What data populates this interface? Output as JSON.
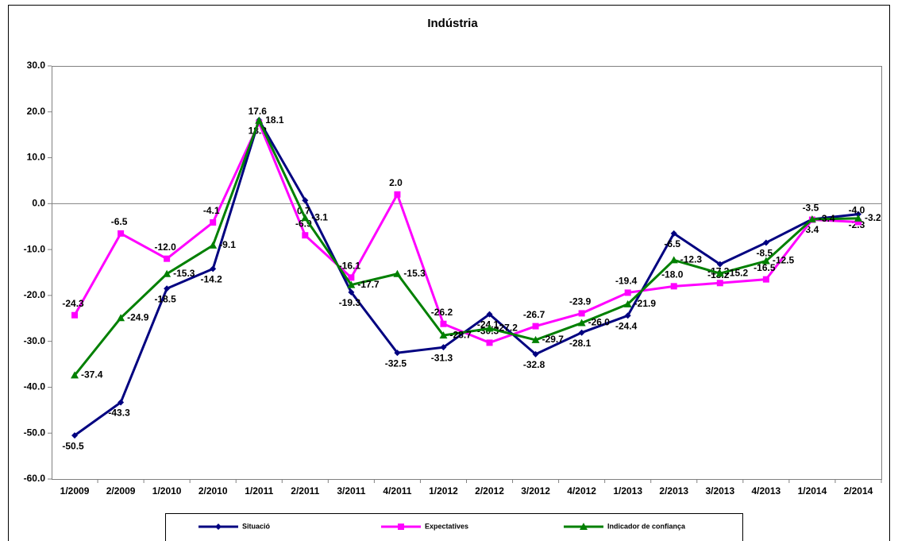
{
  "chart_data": {
    "type": "line",
    "title": "Indústria",
    "categories": [
      "1/2009",
      "2/2009",
      "1/2010",
      "2/2010",
      "1/2011",
      "2/2011",
      "3/2011",
      "4/2011",
      "1/2012",
      "2/2012",
      "3/2012",
      "4/2012",
      "1/2013",
      "2/2013",
      "3/2013",
      "4/2013",
      "1/2014",
      "2/2014"
    ],
    "series": [
      {
        "name": "Situació",
        "color": "#000080",
        "marker": "diamond",
        "values": [
          -50.5,
          -43.3,
          -18.5,
          -14.2,
          18.2,
          0.7,
          -19.3,
          -32.5,
          -31.3,
          -24.1,
          -32.8,
          -28.1,
          -24.4,
          -6.5,
          -13.2,
          -8.5,
          -3.4,
          -2.3
        ],
        "value_labels": [
          "-50.5",
          "-43.3",
          "-18.5",
          "-14.2",
          "18.2",
          "0.7",
          "-19.3",
          "-32.5",
          "-31.3",
          "-24.1",
          "-32.8",
          "-28.1",
          "-24.4",
          "-6.5",
          "-13.2",
          "-8.5",
          "-3.4",
          "-2.3"
        ]
      },
      {
        "name": "Expectatives",
        "color": "#ff00ff",
        "marker": "square",
        "values": [
          -24.3,
          -6.5,
          -12.0,
          -4.1,
          17.6,
          -6.9,
          -16.1,
          2.0,
          -26.2,
          -30.3,
          -26.7,
          -23.9,
          -19.4,
          -18.0,
          -17.3,
          -16.5,
          -3.5,
          -4.0
        ],
        "value_labels": [
          "-24.3",
          "-6.5",
          "-12.0",
          "-4.1",
          "17.6",
          "-6.9",
          "-16.1",
          "2.0",
          "-26.2",
          "-30.3",
          "-26.7",
          "-23.9",
          "-19.4",
          "-18.0",
          "-17.3",
          "-16.5",
          "-3.5",
          "-4.0"
        ]
      },
      {
        "name": "Indicador  de confiança",
        "color": "#008000",
        "marker": "triangle",
        "values": [
          -37.4,
          -24.9,
          -15.3,
          -9.1,
          18.1,
          -3.1,
          -17.7,
          -15.3,
          -28.7,
          -27.2,
          -29.7,
          -26.0,
          -21.9,
          -12.3,
          -15.2,
          -12.5,
          -3.4,
          -3.2
        ],
        "value_labels": [
          "-37.4",
          "-24.9",
          "-15.3",
          "-9.1",
          "18.1",
          "-3.1",
          "-17.7",
          "-15.3",
          "-28.7",
          "-27.2",
          "-29.7",
          "-26.0",
          "-21.9",
          "-12.3",
          "-15.2",
          "-12.5",
          "-3.4",
          "-3.2"
        ]
      }
    ],
    "ylim": [
      -60,
      30
    ],
    "yticks": [
      {
        "value": -60,
        "label": "-60.0"
      },
      {
        "value": -50,
        "label": "-50.0"
      },
      {
        "value": -40,
        "label": "-40.0"
      },
      {
        "value": -30,
        "label": "-30.0"
      },
      {
        "value": -20,
        "label": "-20.0"
      },
      {
        "value": -10,
        "label": "-10.0"
      },
      {
        "value": 0,
        "label": "0.0"
      },
      {
        "value": 10,
        "label": "10.0"
      },
      {
        "value": 20,
        "label": "20.0"
      },
      {
        "value": 30,
        "label": "30.0"
      }
    ],
    "legend": "bottom"
  }
}
